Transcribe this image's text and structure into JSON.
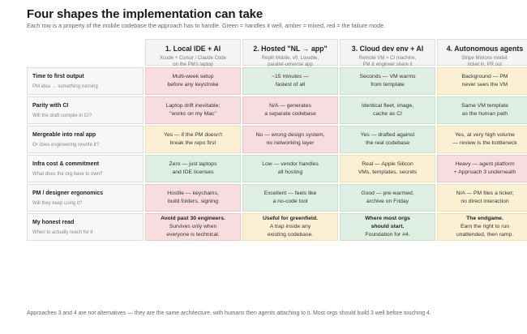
{
  "title": "Four shapes the implementation can take",
  "subtitle": "Each row is a property of the mobile codebase the approach has to handle. Green = handles it well, amber = mixed, red = the failure mode.",
  "columns": [
    {
      "name": "1. Local IDE + AI",
      "sub1": "Xcode + Cursor / Claude Code",
      "sub2": "on the PM's laptop"
    },
    {
      "name": "2. Hosted \"NL → app\"",
      "sub1": "Replit Mobile, v0, Lovable,",
      "sub2": "parallel-universe app"
    },
    {
      "name": "3. Cloud dev env + AI",
      "sub1": "Remote VM = CI machine,",
      "sub2": "PM & engineer share it"
    },
    {
      "name": "4. Autonomous agents",
      "sub1": "Stripe Minions model:",
      "sub2": "ticket in, PR out"
    }
  ],
  "rows": [
    {
      "title": "Time to first output",
      "sub": "PM idea → something running",
      "cells": [
        {
          "l1": "Multi-week setup",
          "l2": "before any keystroke",
          "color": "red"
        },
        {
          "l1": "~15 minutes —",
          "l2": "fastest of all",
          "color": "green"
        },
        {
          "l1": "Seconds — VM warms",
          "l2": "from template",
          "color": "green"
        },
        {
          "l1": "Background — PM",
          "l2": "never sees the VM",
          "color": "amber"
        }
      ]
    },
    {
      "title": "Parity with CI",
      "sub": "Will the draft compile in CI?",
      "cells": [
        {
          "l1": "Laptop drift inevitable;",
          "l2": "\"works on my Mac\"",
          "color": "red"
        },
        {
          "l1": "N/A — generates",
          "l2": "a separate codebase",
          "color": "red"
        },
        {
          "l1": "Identical fleet, image,",
          "l2": "cache as CI",
          "color": "green"
        },
        {
          "l1": "Same VM template",
          "l2": "as the human path",
          "color": "green"
        }
      ]
    },
    {
      "title": "Mergeable into real app",
      "sub": "Or does engineering rewrite it?",
      "cells": [
        {
          "l1": "Yes — if the PM doesn't",
          "l2": "break the repo first",
          "color": "amber"
        },
        {
          "l1": "No — wrong design system,",
          "l2": "no networking layer",
          "color": "red"
        },
        {
          "l1": "Yes — drafted against",
          "l2": "the real codebase",
          "color": "green"
        },
        {
          "l1": "Yes, at very high volume",
          "l2": "— review is the bottleneck",
          "color": "amber"
        }
      ]
    },
    {
      "title": "Infra cost & commitment",
      "sub": "What does the org have to own?",
      "cells": [
        {
          "l1": "Zero — just laptops",
          "l2": "and IDE licenses",
          "color": "green"
        },
        {
          "l1": "Low — vendor handles",
          "l2": "all hosting",
          "color": "green"
        },
        {
          "l1": "Real — Apple Silicon",
          "l2": "VMs, templates, secrets",
          "color": "amber"
        },
        {
          "l1": "Heavy — agent platform",
          "l2": "+ Approach 3 underneath",
          "color": "red"
        }
      ]
    },
    {
      "title": "PM / designer ergonomics",
      "sub": "Will they keep using it?",
      "cells": [
        {
          "l1": "Hostile — keychains,",
          "l2": "build folders, signing",
          "color": "red"
        },
        {
          "l1": "Excellent — feels like",
          "l2": "a no-code tool",
          "color": "green"
        },
        {
          "l1": "Good — pre-warmed,",
          "l2": "archive on Friday",
          "color": "green"
        },
        {
          "l1": "N/A — PM files a ticket;",
          "l2": "no direct interaction",
          "color": "amber"
        }
      ]
    },
    {
      "title": "My honest read",
      "sub": "When to actually reach for it",
      "cells": [
        {
          "l1": "Avoid past 30 engineers.",
          "l2": "Survives only when",
          "l3": "everyone is technical.",
          "color": "red",
          "bold": true
        },
        {
          "l1": "Useful for greenfield.",
          "l2": "A trap inside any",
          "l3": "existing codebase.",
          "color": "amber",
          "bold": true
        },
        {
          "l1": "Where most orgs",
          "l1b": "should start.",
          "l2": "Foundation for #4.",
          "color": "green",
          "bold": true
        },
        {
          "l1": "The endgame.",
          "l2": "Earn the right to run",
          "l3": "unattended, then ramp.",
          "color": "amber",
          "bold": true
        }
      ]
    }
  ],
  "footer": "Approaches 3 and 4 are not alternatives — they are the same architecture, with humans then agents attaching to it. Most orgs should build 3 well before touching 4.",
  "colors": {
    "green": "#deeee2",
    "amber": "#fbf0d4",
    "red": "#f7dde0"
  }
}
